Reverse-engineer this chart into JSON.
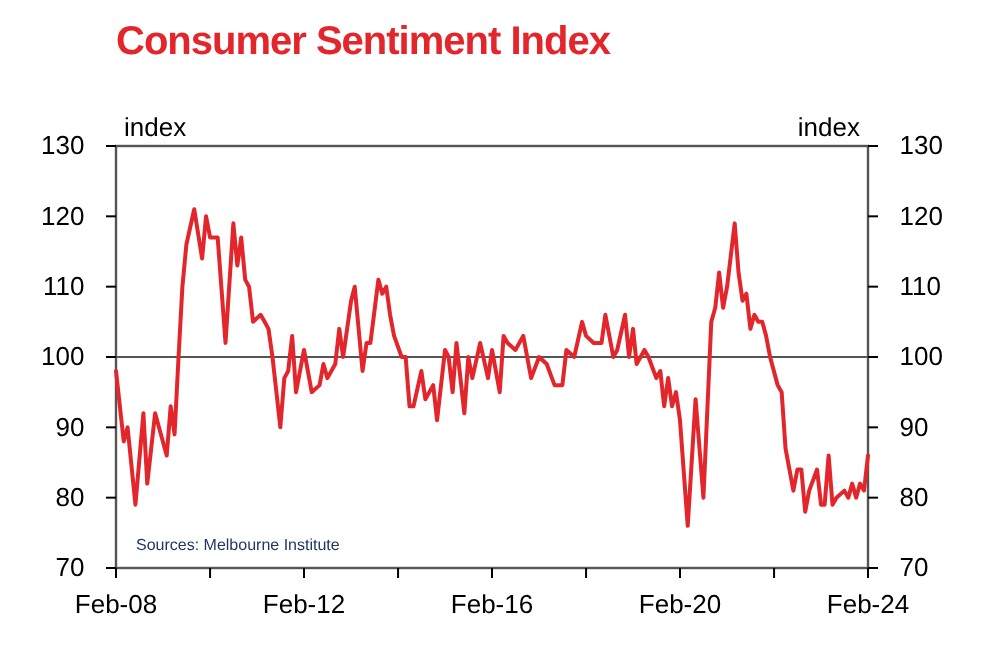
{
  "chart_data": {
    "type": "line",
    "title": "Consumer Sentiment Index",
    "ylabel": "index",
    "y2label": "index",
    "annotations": [
      "Sources: Melbourne Institute"
    ],
    "xlim": [
      "2008-02",
      "2024-02"
    ],
    "xticks": [
      {
        "value": "2008-02",
        "label": "Feb-08"
      },
      {
        "value": "2010-02",
        "label": null
      },
      {
        "value": "2012-02",
        "label": "Feb-12"
      },
      {
        "value": "2014-02",
        "label": null
      },
      {
        "value": "2016-02",
        "label": "Feb-16"
      },
      {
        "value": "2018-02",
        "label": null
      },
      {
        "value": "2020-02",
        "label": "Feb-20"
      },
      {
        "value": "2022-02",
        "label": null
      },
      {
        "value": "2024-02",
        "label": "Feb-24"
      }
    ],
    "ylim": [
      70,
      130
    ],
    "yticks": [
      70,
      80,
      90,
      100,
      110,
      120,
      130
    ],
    "y2lim": [
      70,
      130
    ],
    "y2ticks": [
      70,
      80,
      90,
      100,
      110,
      120,
      130
    ],
    "ref_lines": [
      {
        "axis": "y",
        "value": 100,
        "color": "#555555"
      }
    ],
    "grid": false,
    "marker": "none",
    "line_style": "solid",
    "x": [
      "2008-02",
      "2008-04",
      "2008-05",
      "2008-07",
      "2008-09",
      "2008-10",
      "2008-12",
      "2009-03",
      "2009-04",
      "2009-05",
      "2009-06",
      "2009-07",
      "2009-08",
      "2009-10",
      "2009-12",
      "2010-01",
      "2010-02",
      "2010-04",
      "2010-06",
      "2010-08",
      "2010-09",
      "2010-10",
      "2010-11",
      "2010-12",
      "2011-01",
      "2011-03",
      "2011-04",
      "2011-05",
      "2011-06",
      "2011-08",
      "2011-09",
      "2011-10",
      "2011-11",
      "2011-12",
      "2012-02",
      "2012-04",
      "2012-06",
      "2012-07",
      "2012-08",
      "2012-10",
      "2012-11",
      "2012-12",
      "2013-02",
      "2013-03",
      "2013-05",
      "2013-06",
      "2013-07",
      "2013-09",
      "2013-10",
      "2013-11",
      "2013-12",
      "2014-01",
      "2014-03",
      "2014-04",
      "2014-05",
      "2014-06",
      "2014-08",
      "2014-09",
      "2014-11",
      "2014-12",
      "2015-02",
      "2015-03",
      "2015-04",
      "2015-05",
      "2015-07",
      "2015-08",
      "2015-09",
      "2015-11",
      "2016-01",
      "2016-02",
      "2016-04",
      "2016-05",
      "2016-06",
      "2016-08",
      "2016-10",
      "2016-12",
      "2017-02",
      "2017-04",
      "2017-06",
      "2017-08",
      "2017-09",
      "2017-11",
      "2018-01",
      "2018-02",
      "2018-04",
      "2018-06",
      "2018-07",
      "2018-09",
      "2018-10",
      "2018-12",
      "2019-01",
      "2019-02",
      "2019-03",
      "2019-05",
      "2019-06",
      "2019-08",
      "2019-09",
      "2019-10",
      "2019-11",
      "2019-12",
      "2020-01",
      "2020-02",
      "2020-04",
      "2020-06",
      "2020-08",
      "2020-10",
      "2020-11",
      "2020-12",
      "2021-01",
      "2021-02",
      "2021-04",
      "2021-05",
      "2021-06",
      "2021-07",
      "2021-08",
      "2021-09",
      "2021-10",
      "2021-11",
      "2021-12",
      "2022-01",
      "2022-03",
      "2022-04",
      "2022-05",
      "2022-07",
      "2022-08",
      "2022-09",
      "2022-10",
      "2022-11",
      "2023-01",
      "2023-02",
      "2023-03",
      "2023-04",
      "2023-05",
      "2023-06",
      "2023-08",
      "2023-09",
      "2023-10",
      "2023-11",
      "2023-12",
      "2024-01",
      "2024-02"
    ],
    "series": [
      {
        "color": "#e3262b",
        "values": [
          98,
          88,
          90,
          79,
          92,
          82,
          92,
          86,
          93,
          89,
          100,
          110,
          116,
          121,
          114,
          120,
          117,
          117,
          102,
          119,
          113,
          117,
          111,
          110,
          105,
          106,
          105,
          104,
          100,
          90,
          97,
          98,
          103,
          95,
          101,
          95,
          96,
          99,
          97,
          99,
          104,
          100,
          108,
          110,
          98,
          102,
          102,
          111,
          109,
          110,
          106,
          103,
          100,
          100,
          93,
          93,
          98,
          94,
          96,
          91,
          101,
          100,
          95,
          102,
          92,
          100,
          97,
          102,
          97,
          101,
          95,
          103,
          102,
          101,
          103,
          97,
          100,
          99,
          96,
          96,
          101,
          100,
          105,
          103,
          102,
          102,
          106,
          100,
          101,
          106,
          100,
          104,
          99,
          101,
          100,
          97,
          98,
          93,
          97,
          93,
          95,
          91,
          76,
          94,
          80,
          105,
          107,
          112,
          107,
          110,
          119,
          112,
          108,
          109,
          104,
          106,
          105,
          105,
          103,
          100,
          96,
          95,
          87,
          81,
          84,
          84,
          78,
          81,
          84,
          79,
          79,
          86,
          79,
          80,
          81,
          80,
          82,
          80,
          82,
          81,
          86
        ]
      }
    ]
  }
}
